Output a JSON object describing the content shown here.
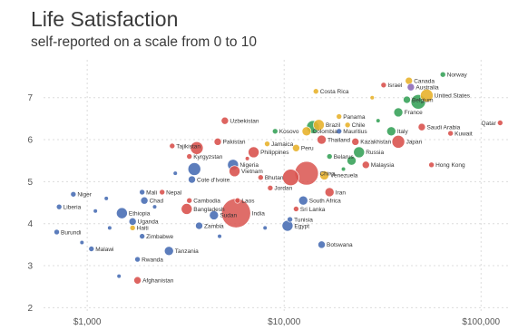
{
  "chart_data": {
    "type": "scatter",
    "title": "Life Satisfaction",
    "subtitle": "self-reported on a scale from 0 to 10",
    "xlabel": "",
    "ylabel": "",
    "x_scale": "log",
    "xlim": [
      600,
      140000
    ],
    "ylim": [
      1.9,
      7.9
    ],
    "x_ticks": [
      {
        "value": 1000,
        "label": "$1,000"
      },
      {
        "value": 10000,
        "label": "$10,000"
      },
      {
        "value": 100000,
        "label": "$100,000"
      }
    ],
    "y_ticks": [
      {
        "value": 2,
        "label": "2"
      },
      {
        "value": 3,
        "label": "3"
      },
      {
        "value": 4,
        "label": "4"
      },
      {
        "value": 5,
        "label": "5"
      },
      {
        "value": 6,
        "label": "6"
      },
      {
        "value": 7,
        "label": "7"
      }
    ],
    "grid": true,
    "legend": "none",
    "region_colors": {
      "africa": "#4a6fb5",
      "asia": "#d9534f",
      "europe": "#3aa35b",
      "americas": "#e8b22e",
      "oceania": "#8e6bb8",
      "middle-east": "#d9534f"
    },
    "points": [
      {
        "label": "Norway",
        "x": 64000,
        "y": 7.55,
        "size": 3,
        "region": "europe"
      },
      {
        "label": "Canada",
        "x": 43000,
        "y": 7.4,
        "size": 4,
        "region": "americas"
      },
      {
        "label": "Israel",
        "x": 32000,
        "y": 7.3,
        "size": 3,
        "region": "middle-east"
      },
      {
        "label": "Australia",
        "x": 44000,
        "y": 7.25,
        "size": 4,
        "region": "oceania"
      },
      {
        "label": "Costa Rica",
        "x": 14500,
        "y": 7.15,
        "size": 3,
        "region": "americas"
      },
      {
        "label": "United States",
        "x": 53000,
        "y": 7.05,
        "size": 7,
        "region": "americas"
      },
      {
        "label": "Belgium",
        "x": 42000,
        "y": 6.95,
        "size": 4,
        "region": "europe"
      },
      {
        "label": "",
        "x": 48000,
        "y": 6.9,
        "size": 8,
        "region": "europe"
      },
      {
        "label": "France",
        "x": 38000,
        "y": 6.65,
        "size": 5,
        "region": "europe"
      },
      {
        "label": "Panama",
        "x": 19000,
        "y": 6.55,
        "size": 3,
        "region": "americas"
      },
      {
        "label": "Uzbekistan",
        "x": 5000,
        "y": 6.45,
        "size": 4,
        "region": "asia"
      },
      {
        "label": "Brazil",
        "x": 15000,
        "y": 6.35,
        "size": 6,
        "region": "americas"
      },
      {
        "label": "Chile",
        "x": 21000,
        "y": 6.35,
        "size": 3,
        "region": "americas"
      },
      {
        "label": "Saudi Arabia",
        "x": 50000,
        "y": 6.3,
        "size": 4,
        "region": "middle-east"
      },
      {
        "label": "Qatar",
        "x": 125000,
        "y": 6.4,
        "size": 3,
        "region": "middle-east"
      },
      {
        "label": "Kosovo",
        "x": 9000,
        "y": 6.2,
        "size": 3,
        "region": "europe"
      },
      {
        "label": "Colombia",
        "x": 13000,
        "y": 6.2,
        "size": 5,
        "region": "americas"
      },
      {
        "label": "Mauritius",
        "x": 19000,
        "y": 6.2,
        "size": 3,
        "region": "africa"
      },
      {
        "label": "Italy",
        "x": 35000,
        "y": 6.2,
        "size": 5,
        "region": "europe"
      },
      {
        "label": "",
        "x": 14000,
        "y": 6.3,
        "size": 7,
        "region": "europe"
      },
      {
        "label": "Kuwait",
        "x": 70000,
        "y": 6.15,
        "size": 3,
        "region": "middle-east"
      },
      {
        "label": "Thailand",
        "x": 15500,
        "y": 6.0,
        "size": 5,
        "region": "asia"
      },
      {
        "label": "Kazakhstan",
        "x": 23000,
        "y": 5.95,
        "size": 4,
        "region": "asia"
      },
      {
        "label": "Japan",
        "x": 38000,
        "y": 5.95,
        "size": 7,
        "region": "asia"
      },
      {
        "label": "Pakistan",
        "x": 4600,
        "y": 5.95,
        "size": 4,
        "region": "asia"
      },
      {
        "label": "Jamaica",
        "x": 8200,
        "y": 5.9,
        "size": 3,
        "region": "americas"
      },
      {
        "label": "Tajikistan",
        "x": 2700,
        "y": 5.85,
        "size": 3,
        "region": "asia"
      },
      {
        "label": "Peru",
        "x": 11500,
        "y": 5.8,
        "size": 4,
        "region": "americas"
      },
      {
        "label": "",
        "x": 3600,
        "y": 5.8,
        "size": 7,
        "region": "asia"
      },
      {
        "label": "Kyrgyzstan",
        "x": 3300,
        "y": 5.6,
        "size": 3,
        "region": "asia"
      },
      {
        "label": "Philippines",
        "x": 7000,
        "y": 5.7,
        "size": 6,
        "region": "asia"
      },
      {
        "label": "Russia",
        "x": 24000,
        "y": 5.7,
        "size": 6,
        "region": "europe"
      },
      {
        "label": "Belarus",
        "x": 17000,
        "y": 5.6,
        "size": 3,
        "region": "europe"
      },
      {
        "label": "",
        "x": 22000,
        "y": 5.5,
        "size": 5,
        "region": "europe"
      },
      {
        "label": "Nigeria",
        "x": 5500,
        "y": 5.4,
        "size": 6,
        "region": "africa"
      },
      {
        "label": "Malaysia",
        "x": 26000,
        "y": 5.4,
        "size": 4,
        "region": "asia"
      },
      {
        "label": "Hong Kong",
        "x": 56000,
        "y": 5.4,
        "size": 3,
        "region": "asia"
      },
      {
        "label": "",
        "x": 3500,
        "y": 5.3,
        "size": 7,
        "region": "africa"
      },
      {
        "label": "China",
        "x": 13000,
        "y": 5.2,
        "size": 13,
        "region": "asia"
      },
      {
        "label": "Venezuela",
        "x": 16000,
        "y": 5.15,
        "size": 5,
        "region": "americas"
      },
      {
        "label": "Vietnam",
        "x": 5600,
        "y": 5.25,
        "size": 6,
        "region": "asia"
      },
      {
        "label": "Bhutan",
        "x": 7600,
        "y": 5.1,
        "size": 3,
        "region": "asia"
      },
      {
        "label": "",
        "x": 10800,
        "y": 5.1,
        "size": 9,
        "region": "asia"
      },
      {
        "label": "Cote d'Ivoire",
        "x": 3400,
        "y": 5.05,
        "size": 4,
        "region": "africa"
      },
      {
        "label": "Jordan",
        "x": 8500,
        "y": 4.85,
        "size": 3,
        "region": "middle-east"
      },
      {
        "label": "Iran",
        "x": 17000,
        "y": 4.75,
        "size": 5,
        "region": "middle-east"
      },
      {
        "label": "Niger",
        "x": 850,
        "y": 4.7,
        "size": 3,
        "region": "africa"
      },
      {
        "label": "Mali",
        "x": 1900,
        "y": 4.75,
        "size": 3,
        "region": "africa"
      },
      {
        "label": "Nepal",
        "x": 2400,
        "y": 4.75,
        "size": 3,
        "region": "asia"
      },
      {
        "label": "Chad",
        "x": 1950,
        "y": 4.55,
        "size": 4,
        "region": "africa"
      },
      {
        "label": "Cambodia",
        "x": 3300,
        "y": 4.55,
        "size": 3,
        "region": "asia"
      },
      {
        "label": "Laos",
        "x": 5800,
        "y": 4.55,
        "size": 3,
        "region": "asia"
      },
      {
        "label": "South Africa",
        "x": 12500,
        "y": 4.55,
        "size": 5,
        "region": "africa"
      },
      {
        "label": "Liberia",
        "x": 720,
        "y": 4.4,
        "size": 3,
        "region": "africa"
      },
      {
        "label": "Bangladesh",
        "x": 3200,
        "y": 4.35,
        "size": 6,
        "region": "asia"
      },
      {
        "label": "Sri Lanka",
        "x": 11500,
        "y": 4.35,
        "size": 3,
        "region": "asia"
      },
      {
        "label": "Ethiopia",
        "x": 1500,
        "y": 4.25,
        "size": 6,
        "region": "africa"
      },
      {
        "label": "India",
        "x": 5700,
        "y": 4.25,
        "size": 16,
        "region": "asia"
      },
      {
        "label": "Sudan",
        "x": 4400,
        "y": 4.2,
        "size": 5,
        "region": "africa"
      },
      {
        "label": "Uganda",
        "x": 1700,
        "y": 4.05,
        "size": 4,
        "region": "africa"
      },
      {
        "label": "Tunisia",
        "x": 10700,
        "y": 4.1,
        "size": 3,
        "region": "africa"
      },
      {
        "label": "Zambia",
        "x": 3700,
        "y": 3.95,
        "size": 4,
        "region": "africa"
      },
      {
        "label": "Egypt",
        "x": 10400,
        "y": 3.95,
        "size": 6,
        "region": "africa"
      },
      {
        "label": "Haiti",
        "x": 1700,
        "y": 3.9,
        "size": 3,
        "region": "americas"
      },
      {
        "label": "Burundi",
        "x": 700,
        "y": 3.8,
        "size": 3,
        "region": "africa"
      },
      {
        "label": "Zimbabwe",
        "x": 1900,
        "y": 3.7,
        "size": 3,
        "region": "africa"
      },
      {
        "label": "Botswana",
        "x": 15500,
        "y": 3.5,
        "size": 4,
        "region": "africa"
      },
      {
        "label": "Malawi",
        "x": 1050,
        "y": 3.4,
        "size": 3,
        "region": "africa"
      },
      {
        "label": "Tanzania",
        "x": 2600,
        "y": 3.35,
        "size": 5,
        "region": "africa"
      },
      {
        "label": "Rwanda",
        "x": 1800,
        "y": 3.15,
        "size": 3,
        "region": "africa"
      },
      {
        "label": "Afghanistan",
        "x": 1800,
        "y": 2.65,
        "size": 4,
        "region": "asia"
      },
      {
        "label": "",
        "x": 1450,
        "y": 2.75,
        "size": 2,
        "region": "africa"
      },
      {
        "label": "",
        "x": 1100,
        "y": 4.3,
        "size": 2,
        "region": "africa"
      },
      {
        "label": "",
        "x": 2200,
        "y": 4.4,
        "size": 2,
        "region": "africa"
      },
      {
        "label": "",
        "x": 1300,
        "y": 3.9,
        "size": 2,
        "region": "africa"
      },
      {
        "label": "",
        "x": 4700,
        "y": 3.7,
        "size": 2,
        "region": "africa"
      },
      {
        "label": "",
        "x": 8000,
        "y": 3.9,
        "size": 2,
        "region": "africa"
      },
      {
        "label": "",
        "x": 28000,
        "y": 7.0,
        "size": 2,
        "region": "americas"
      },
      {
        "label": "",
        "x": 30000,
        "y": 6.45,
        "size": 2,
        "region": "europe"
      },
      {
        "label": "",
        "x": 20000,
        "y": 5.3,
        "size": 2,
        "region": "europe"
      },
      {
        "label": "",
        "x": 6500,
        "y": 5.55,
        "size": 2,
        "region": "asia"
      },
      {
        "label": "",
        "x": 2800,
        "y": 5.2,
        "size": 2,
        "region": "africa"
      },
      {
        "label": "",
        "x": 940,
        "y": 3.55,
        "size": 2,
        "region": "africa"
      },
      {
        "label": "",
        "x": 1250,
        "y": 4.6,
        "size": 2,
        "region": "africa"
      }
    ]
  }
}
